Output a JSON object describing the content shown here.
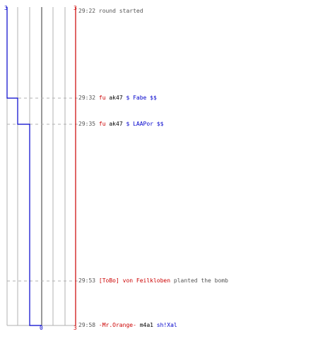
{
  "colors": {
    "team_a": "#0000cc",
    "team_b": "#cc0000",
    "grid": "#b0b0b0",
    "center_line": "#555555",
    "event_dash": "#b0b0b0",
    "text_muted": "#555555"
  },
  "chart_data": {
    "type": "line",
    "ylim": [
      0,
      3
    ],
    "series": [
      {
        "values": [
          3,
          2,
          1,
          0
        ]
      },
      {
        "values": [
          3,
          3,
          3,
          3
        ]
      }
    ],
    "tick_labels": {
      "top_left": "3",
      "top_right": "3",
      "bottom_center": "0",
      "bottom_right": "3"
    }
  },
  "log": [
    {
      "time": "29:22",
      "segments": [
        {
          "text": "round started",
          "style": "plain"
        }
      ]
    },
    {
      "time": "29:32",
      "segments": [
        {
          "text": "fu",
          "style": "red"
        },
        {
          "text": " ak47 ",
          "style": "blk"
        },
        {
          "text": "$ Fabe $$",
          "style": "blu"
        }
      ]
    },
    {
      "time": "29:35",
      "segments": [
        {
          "text": "fu",
          "style": "red"
        },
        {
          "text": " ak47 ",
          "style": "blk"
        },
        {
          "text": "$ LAAPor $$",
          "style": "blu"
        }
      ]
    },
    {
      "time": "29:53",
      "segments": [
        {
          "text": "[ToBo] von Feilkloben",
          "style": "red"
        },
        {
          "text": " planted the bomb",
          "style": "plain"
        }
      ]
    },
    {
      "time": "29:58",
      "segments": [
        {
          "text": "-Mr.Orange-",
          "style": "red"
        },
        {
          "text": " m4a1 ",
          "style": "blk"
        },
        {
          "text": "sh!Xal",
          "style": "blu"
        }
      ]
    }
  ]
}
